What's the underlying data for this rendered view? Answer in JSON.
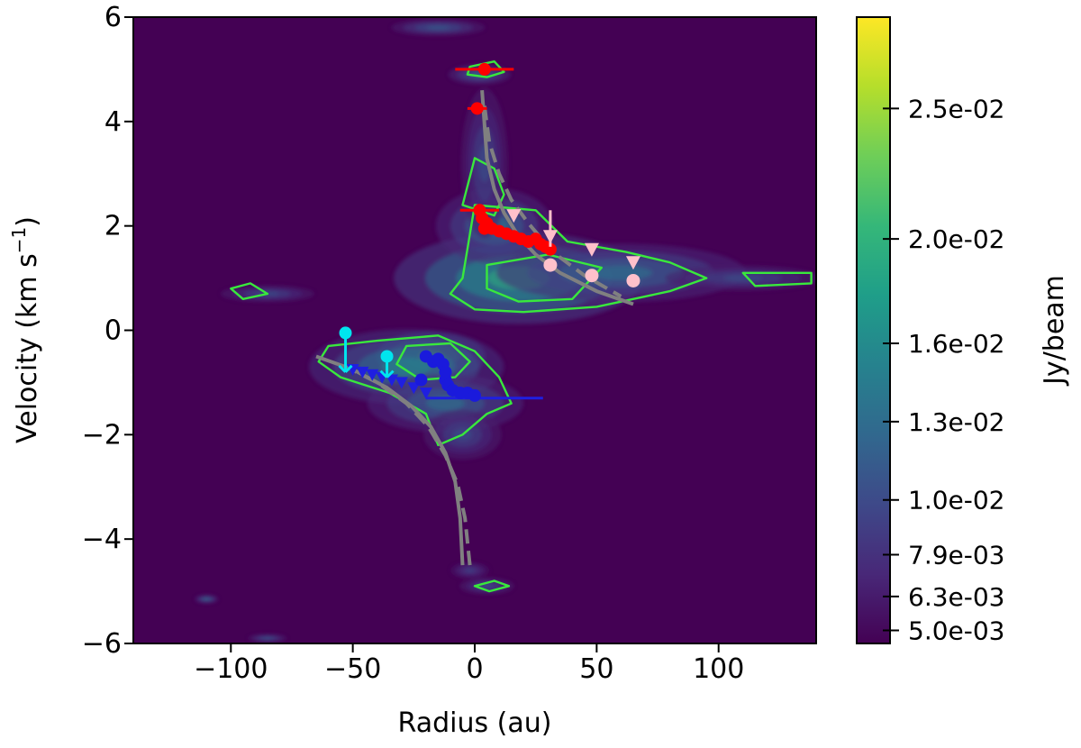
{
  "chart_data": {
    "type": "heatmap",
    "xlabel": "Radius (au)",
    "ylabel_main": "Velocity (km s",
    "ylabel_sup": "−1",
    "ylabel_close": ")",
    "xlim": [
      -140,
      140
    ],
    "ylim": [
      -6,
      6
    ],
    "x_ticks": [
      {
        "value": -100,
        "label": "−100"
      },
      {
        "value": -50,
        "label": "−50"
      },
      {
        "value": 0,
        "label": "0"
      },
      {
        "value": 50,
        "label": "50"
      },
      {
        "value": 100,
        "label": "100"
      }
    ],
    "y_ticks": [
      {
        "value": 6,
        "label": "6"
      },
      {
        "value": 4,
        "label": "4"
      },
      {
        "value": 2,
        "label": "2"
      },
      {
        "value": 0,
        "label": "0"
      },
      {
        "value": -2,
        "label": "−2"
      },
      {
        "value": -4,
        "label": "−4"
      },
      {
        "value": -6,
        "label": "−6"
      }
    ],
    "colorbar": {
      "label": "Jy/beam",
      "vmin": 0.0045,
      "vmax": 0.0285,
      "ticks": [
        {
          "value": 0.025,
          "label": "2.5e-02"
        },
        {
          "value": 0.02,
          "label": "2.0e-02"
        },
        {
          "value": 0.016,
          "label": "1.6e-02"
        },
        {
          "value": 0.013,
          "label": "1.3e-02"
        },
        {
          "value": 0.01,
          "label": "1.0e-02"
        },
        {
          "value": 0.0079,
          "label": "7.9e-03"
        },
        {
          "value": 0.0063,
          "label": "6.3e-03"
        },
        {
          "value": 0.005,
          "label": "5.0e-03"
        }
      ],
      "colors": [
        "#440154",
        "#482878",
        "#3e4989",
        "#31688e",
        "#26828e",
        "#1f9e89",
        "#35b779",
        "#6ece58",
        "#b5de2b",
        "#fde725"
      ]
    },
    "emission_blobs": [
      {
        "x": 18,
        "y": 1.0,
        "sx": 32,
        "sy": 0.55,
        "amp": 0.75
      },
      {
        "x": 60,
        "y": 1.1,
        "sx": 32,
        "sy": 0.35,
        "amp": 0.45
      },
      {
        "x": 8,
        "y": 2.0,
        "sx": 15,
        "sy": 0.45,
        "amp": 0.45
      },
      {
        "x": -18,
        "y": -0.5,
        "sx": 14,
        "sy": 0.3,
        "amp": 0.95
      },
      {
        "x": -28,
        "y": -0.7,
        "sx": 25,
        "sy": 0.45,
        "amp": 0.55
      },
      {
        "x": -12,
        "y": -1.4,
        "sx": 20,
        "sy": 0.35,
        "amp": 0.45
      },
      {
        "x": -5,
        "y": -2.0,
        "sx": 10,
        "sy": 0.3,
        "amp": 0.3
      },
      {
        "x": 4,
        "y": 3.2,
        "sx": 6,
        "sy": 0.9,
        "amp": 0.3
      },
      {
        "x": 2,
        "y": 4.9,
        "sx": 8,
        "sy": 0.12,
        "amp": 0.4
      },
      {
        "x": -2,
        "y": -4.6,
        "sx": 5,
        "sy": 0.1,
        "amp": 0.25
      },
      {
        "x": 5,
        "y": -4.9,
        "sx": 7,
        "sy": 0.1,
        "amp": 0.3
      },
      {
        "x": -85,
        "y": 0.7,
        "sx": 12,
        "sy": 0.1,
        "amp": 0.3
      },
      {
        "x": -110,
        "y": -5.15,
        "sx": 3,
        "sy": 0.05,
        "amp": 0.45
      },
      {
        "x": -85,
        "y": -5.9,
        "sx": 5,
        "sy": 0.05,
        "amp": 0.35
      },
      {
        "x": -15,
        "y": 5.8,
        "sx": 12,
        "sy": 0.1,
        "amp": 0.35
      },
      {
        "x": 110,
        "y": 1.0,
        "sx": 20,
        "sy": 0.15,
        "amp": 0.3
      }
    ],
    "contours": [
      {
        "points": [
          [
            -5,
            1.0
          ],
          [
            0,
            2.4
          ],
          [
            25,
            2.3
          ],
          [
            38,
            1.7
          ],
          [
            62,
            1.5
          ],
          [
            80,
            1.3
          ],
          [
            95,
            1.0
          ],
          [
            80,
            0.75
          ],
          [
            50,
            0.45
          ],
          [
            20,
            0.35
          ],
          [
            0,
            0.4
          ],
          [
            -10,
            0.7
          ]
        ]
      },
      {
        "points": [
          [
            5,
            1.25
          ],
          [
            30,
            1.45
          ],
          [
            52,
            1.2
          ],
          [
            40,
            0.6
          ],
          [
            18,
            0.55
          ],
          [
            5,
            0.8
          ]
        ]
      },
      {
        "points": [
          [
            -60,
            -0.3
          ],
          [
            -40,
            -0.2
          ],
          [
            -15,
            -0.1
          ],
          [
            0,
            -0.4
          ],
          [
            10,
            -0.9
          ],
          [
            15,
            -1.4
          ],
          [
            5,
            -1.6
          ],
          [
            -5,
            -2.0
          ],
          [
            -15,
            -2.2
          ],
          [
            -20,
            -1.6
          ],
          [
            -35,
            -1.2
          ],
          [
            -55,
            -0.9
          ],
          [
            -64,
            -0.6
          ]
        ]
      },
      {
        "points": [
          [
            -28,
            -0.3
          ],
          [
            -10,
            -0.25
          ],
          [
            -2,
            -0.6
          ],
          [
            -8,
            -0.9
          ],
          [
            -22,
            -0.95
          ],
          [
            -32,
            -0.65
          ]
        ]
      },
      {
        "points": [
          [
            -2,
            5.05
          ],
          [
            8,
            5.15
          ],
          [
            12,
            4.95
          ],
          [
            5,
            4.85
          ],
          [
            -3,
            4.9
          ]
        ]
      },
      {
        "points": [
          [
            -5,
            2.4
          ],
          [
            0,
            3.3
          ],
          [
            8,
            3.1
          ],
          [
            12,
            2.6
          ],
          [
            8,
            2.2
          ]
        ]
      },
      {
        "points": [
          [
            -100,
            0.8
          ],
          [
            -92,
            0.9
          ],
          [
            -85,
            0.7
          ],
          [
            -95,
            0.6
          ]
        ]
      },
      {
        "points": [
          [
            110,
            1.1
          ],
          [
            138,
            1.1
          ],
          [
            138,
            0.9
          ],
          [
            115,
            0.85
          ]
        ]
      },
      {
        "points": [
          [
            0,
            -4.9
          ],
          [
            8,
            -4.8
          ],
          [
            14,
            -4.9
          ],
          [
            6,
            -5.0
          ]
        ]
      }
    ],
    "red_points": [
      {
        "x": 4,
        "y": 5.0,
        "xerr": 12
      },
      {
        "x": 1,
        "y": 4.25,
        "xerr": 4
      },
      {
        "x": 2,
        "y": 2.3,
        "xerr": 8
      },
      {
        "x": 3,
        "y": 2.15
      },
      {
        "x": 5,
        "y": 2.05
      },
      {
        "x": 4,
        "y": 1.95
      },
      {
        "x": 7,
        "y": 1.95
      },
      {
        "x": 10,
        "y": 1.9
      },
      {
        "x": 13,
        "y": 1.85
      },
      {
        "x": 16,
        "y": 1.8
      },
      {
        "x": 19,
        "y": 1.75
      },
      {
        "x": 22,
        "y": 1.7
      },
      {
        "x": 25,
        "y": 1.75
      },
      {
        "x": 27,
        "y": 1.65
      },
      {
        "x": 29,
        "y": 1.6
      },
      {
        "x": 31,
        "y": 1.55
      }
    ],
    "blue_points": [
      {
        "x": -20,
        "y": -0.5
      },
      {
        "x": -17,
        "y": -0.6
      },
      {
        "x": -15,
        "y": -0.55
      },
      {
        "x": -13,
        "y": -0.65
      },
      {
        "x": -12,
        "y": -0.8
      },
      {
        "x": -12,
        "y": -0.95
      },
      {
        "x": -11,
        "y": -1.05
      },
      {
        "x": -9,
        "y": -1.15
      },
      {
        "x": -6,
        "y": -1.2
      },
      {
        "x": -3,
        "y": -1.2
      },
      {
        "x": 0,
        "y": -1.25
      },
      {
        "x": -22,
        "y": -0.95
      }
    ],
    "blue_triangles": [
      {
        "x": -50,
        "y": -0.75
      },
      {
        "x": -46,
        "y": -0.8
      },
      {
        "x": -42,
        "y": -0.85
      },
      {
        "x": -38,
        "y": -0.9
      },
      {
        "x": -34,
        "y": -0.95
      },
      {
        "x": -30,
        "y": -1.0
      },
      {
        "x": -25,
        "y": -1.1
      },
      {
        "x": -20,
        "y": -1.2
      }
    ],
    "blue_line": {
      "y": -1.3,
      "x1": -20,
      "x2": 28
    },
    "cyan_points": [
      {
        "x": -53,
        "y": -0.05,
        "down_to": -0.8
      },
      {
        "x": -36,
        "y": -0.5,
        "down_to": -0.9
      }
    ],
    "pink_triangles": [
      {
        "x": 16,
        "y": 2.2
      },
      {
        "x": 31,
        "y": 1.8
      },
      {
        "x": 48,
        "y": 1.55
      },
      {
        "x": 65,
        "y": 1.3
      }
    ],
    "pink_points": [
      {
        "x": 31,
        "y": 1.25
      },
      {
        "x": 48,
        "y": 1.05
      },
      {
        "x": 65,
        "y": 0.95
      }
    ],
    "pink_arrow": {
      "x": 31,
      "y1": 2.3,
      "y2": 1.6
    },
    "model_curves": {
      "color": "#808080",
      "solid_redshifted": [
        [
          3,
          4.6
        ],
        [
          5,
          3.3
        ],
        [
          8,
          2.7
        ],
        [
          12,
          2.25
        ],
        [
          18,
          1.8
        ],
        [
          25,
          1.45
        ],
        [
          35,
          1.1
        ],
        [
          50,
          0.75
        ],
        [
          65,
          0.5
        ]
      ],
      "dashed_redshifted": [
        [
          4,
          4.3
        ],
        [
          6,
          3.6
        ],
        [
          10,
          3.0
        ],
        [
          15,
          2.5
        ],
        [
          22,
          2.05
        ],
        [
          32,
          1.5
        ],
        [
          45,
          1.05
        ],
        [
          60,
          0.65
        ]
      ],
      "solid_blueshifted": [
        [
          -5,
          -4.5
        ],
        [
          -6,
          -3.6
        ],
        [
          -8,
          -2.9
        ],
        [
          -12,
          -2.35
        ],
        [
          -18,
          -1.85
        ],
        [
          -26,
          -1.45
        ],
        [
          -36,
          -1.1
        ],
        [
          -50,
          -0.75
        ],
        [
          -65,
          -0.5
        ]
      ],
      "dashed_blueshifted": [
        [
          -2,
          -4.5
        ],
        [
          -4,
          -3.6
        ],
        [
          -7,
          -2.95
        ],
        [
          -12,
          -2.4
        ],
        [
          -19,
          -1.85
        ],
        [
          -28,
          -1.4
        ],
        [
          -40,
          -1.0
        ],
        [
          -55,
          -0.65
        ]
      ]
    }
  }
}
